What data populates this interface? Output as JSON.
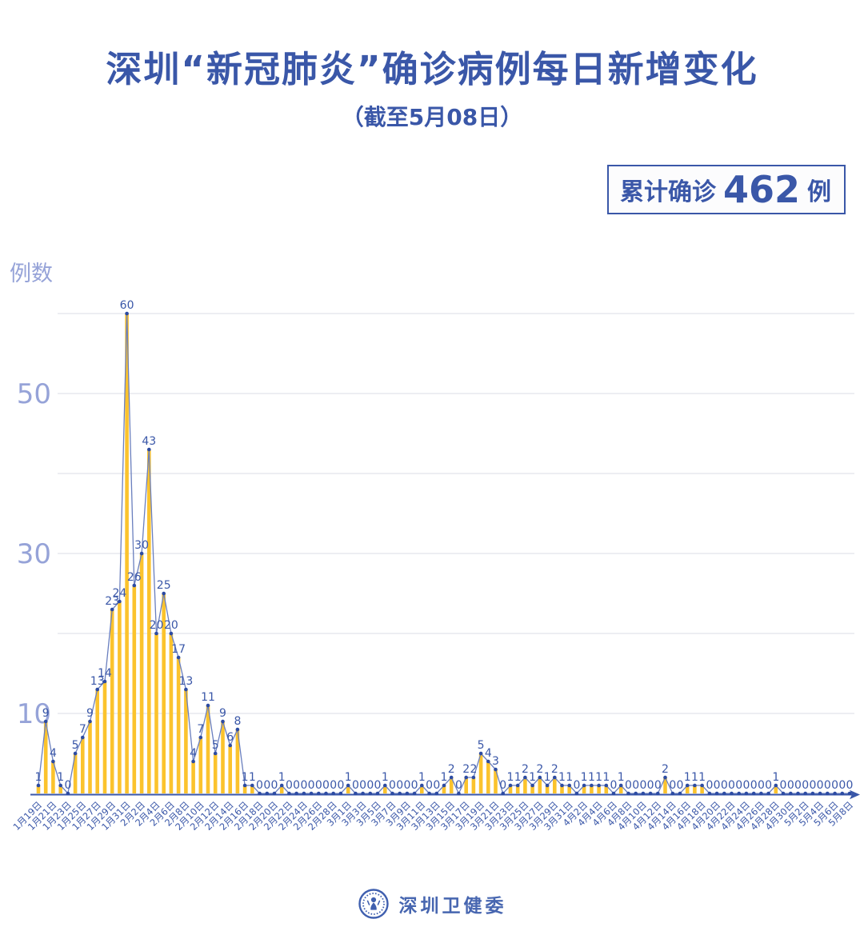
{
  "badge": {
    "prefix": "累计确诊",
    "value": "462",
    "unit": "例"
  },
  "footer": {
    "org": "深圳卫健委",
    "logo_icon": "shenzhen-health-commission-emblem"
  },
  "colors": {
    "title_blue": "#3A57A8",
    "axis_tick_text": "#96A3D8",
    "grid": "#E7E8EE",
    "axis_line": "#3A57A8",
    "bar_yellow": "#FBC32D",
    "line_blue": "#6A7FBE",
    "dot_blue": "#2C4BA3",
    "point_label_blue": "#3A57A8"
  },
  "chart_data": {
    "type": "bar+line",
    "title": "深圳“新冠肺炎”确诊病例每日新增变化",
    "subtitle": "（截至5月08日）",
    "ylabel": "例数",
    "ylim": [
      0,
      62
    ],
    "grid": "horizontal gridlines every 10, no vertical axis line",
    "gridline_values": [
      10,
      20,
      30,
      40,
      50,
      60
    ],
    "y_tick_labels": [
      50,
      30,
      10
    ],
    "legend": "none",
    "point_labels_shown": true,
    "x_tick_labels": [
      "1月19日",
      "1月21日",
      "1月23日",
      "1月25日",
      "1月27日",
      "1月29日",
      "1月31日",
      "2月2日",
      "2月4日",
      "2月6日",
      "2月8日",
      "2月10日",
      "2月12日",
      "2月14日",
      "2月16日",
      "2月18日",
      "2月20日",
      "2月22日",
      "2月24日",
      "2月26日",
      "2月28日",
      "3月1日",
      "3月3日",
      "3月5日",
      "3月7日",
      "3月9日",
      "3月11日",
      "3月13日",
      "3月15日",
      "3月17日",
      "3月19日",
      "3月21日",
      "3月23日",
      "3月25日",
      "3月27日",
      "3月29日",
      "3月31日",
      "4月2日",
      "4月4日",
      "4月6日",
      "4月8日",
      "4月10日",
      "4月12日",
      "4月14日",
      "4月16日",
      "4月18日",
      "4月20日",
      "4月22日",
      "4月24日",
      "4月26日",
      "4月28日",
      "4月30日",
      "5月2日",
      "5月4日",
      "5月6日",
      "5月8日"
    ],
    "values": [
      1,
      9,
      4,
      1,
      0,
      5,
      7,
      9,
      13,
      14,
      23,
      24,
      60,
      26,
      30,
      43,
      20,
      25,
      20,
      17,
      13,
      4,
      7,
      11,
      5,
      9,
      6,
      8,
      1,
      1,
      0,
      0,
      0,
      1,
      0,
      0,
      0,
      0,
      0,
      0,
      0,
      0,
      1,
      0,
      0,
      0,
      0,
      1,
      0,
      0,
      0,
      0,
      1,
      0,
      0,
      1,
      2,
      0,
      2,
      2,
      5,
      4,
      3,
      0,
      1,
      1,
      2,
      1,
      2,
      1,
      2,
      1,
      1,
      0,
      1,
      1,
      1,
      1,
      0,
      1,
      0,
      0,
      0,
      0,
      0,
      2,
      0,
      0,
      1,
      1,
      1,
      0,
      0,
      0,
      0,
      0,
      0,
      0,
      0,
      0,
      1,
      0,
      0,
      0,
      0,
      0,
      0,
      0,
      0,
      0,
      0
    ],
    "values_total": 462
  }
}
